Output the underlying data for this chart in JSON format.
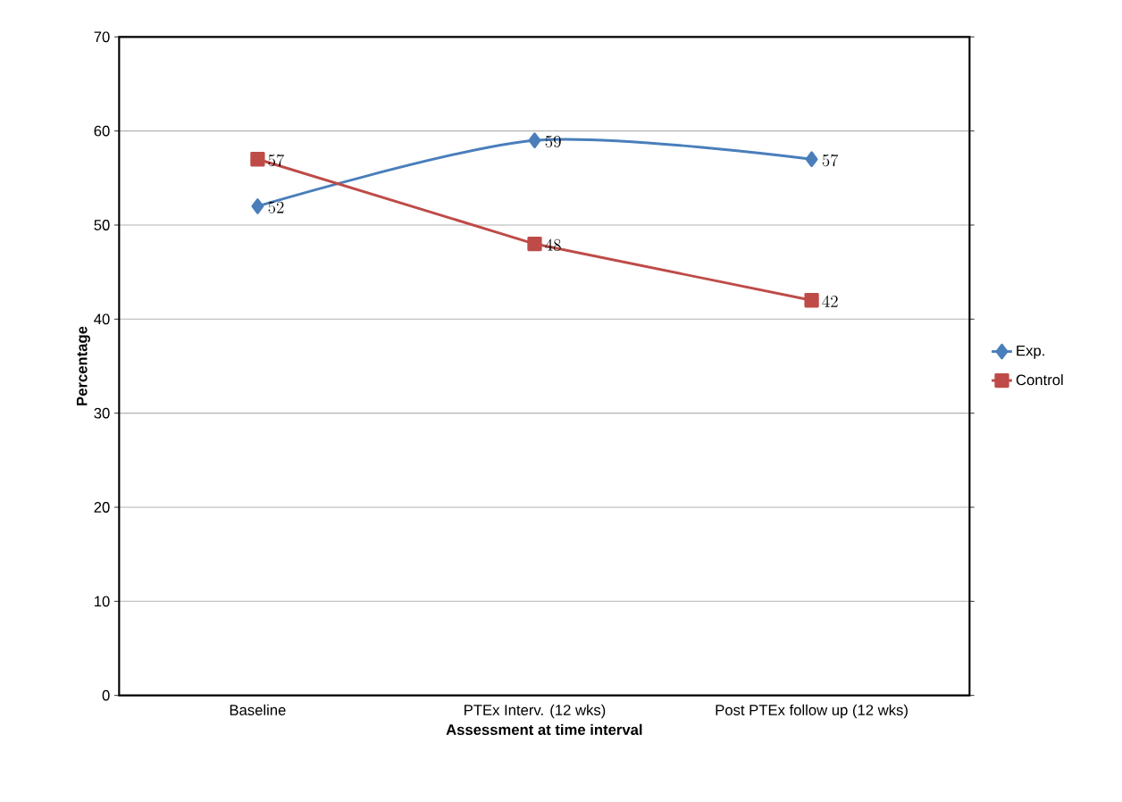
{
  "chart_data": {
    "type": "line",
    "xlabel": "Assessment at time interval",
    "ylabel": "Percentage",
    "categories": [
      "Baseline",
      "PTEx Interv. (12 wks)",
      "Post PTEx follow up (12 wks)"
    ],
    "series": [
      {
        "name": "Exp.",
        "color": "#4a7ebb",
        "marker": "diamond",
        "values": [
          52,
          59,
          57
        ]
      },
      {
        "name": "Control",
        "color": "#be4b48",
        "marker": "square",
        "values": [
          57,
          48,
          42
        ]
      }
    ],
    "ylim": [
      0,
      70
    ],
    "yticks": [
      0,
      10,
      20,
      30,
      40,
      50,
      60,
      70
    ],
    "grid": "y",
    "legend": "right",
    "data_labels": true,
    "line_style": "solid"
  }
}
